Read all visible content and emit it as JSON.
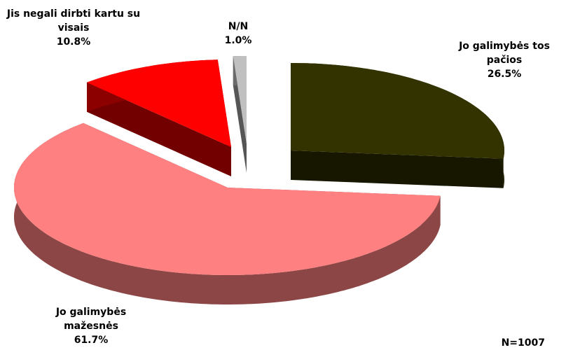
{
  "chart_data": {
    "type": "pie",
    "categories": [
      "Jo galimybės tos pačios",
      "Jo galimybės mažesnės",
      "Jis negali dirbti kartu su visais",
      "N/N"
    ],
    "values": [
      26.5,
      61.7,
      10.8,
      1.0
    ],
    "value_labels": [
      "26.5%",
      "61.7%",
      "10.8%",
      "1.0%"
    ],
    "colors": [
      "#333300",
      "#ff8080",
      "#ff0000",
      "#c0c0c0"
    ],
    "start_angle": 0,
    "direction": "clockwise",
    "three_d": true,
    "exploded": true,
    "annotation": "N=1007"
  }
}
